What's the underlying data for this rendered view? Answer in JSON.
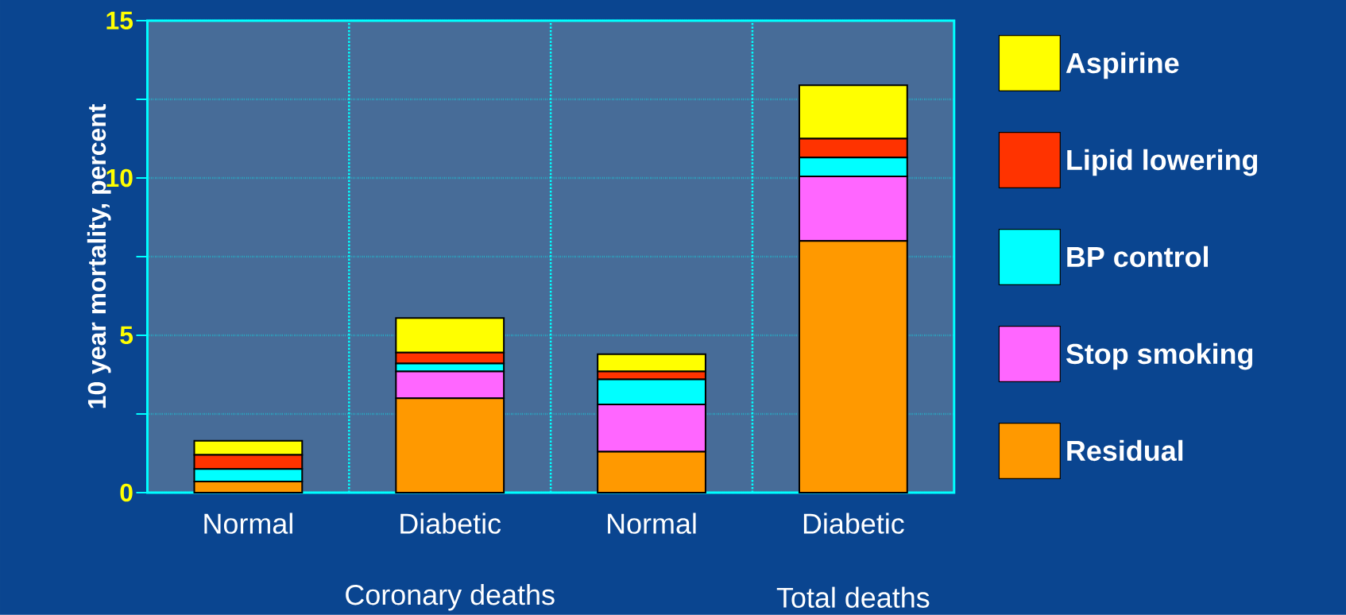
{
  "chart_data": {
    "type": "bar",
    "stacked": true,
    "ylabel": "10 year mortality, percent",
    "categories": [
      "Normal",
      "Diabetic",
      "Normal",
      "Diabetic"
    ],
    "series": [
      {
        "name": "Residual",
        "color": "#ff9900",
        "values": [
          0.35,
          3.0,
          1.3,
          8.0
        ]
      },
      {
        "name": "Stop smoking",
        "color": "#ff66ff",
        "values": [
          0,
          0.85,
          1.5,
          2.05
        ]
      },
      {
        "name": "BP control",
        "color": "#00ffff",
        "values": [
          0.4,
          0.25,
          0.8,
          0.6
        ]
      },
      {
        "name": "Lipid lowering",
        "color": "#ff3300",
        "values": [
          0.45,
          0.35,
          0.25,
          0.6
        ]
      },
      {
        "name": "Aspirine",
        "color": "#ffff00",
        "values": [
          0.45,
          1.1,
          0.55,
          1.7
        ]
      }
    ],
    "ylim": [
      0,
      15
    ],
    "yticks": [
      0,
      {
        "value": 2.5,
        "label": null
      },
      5,
      {
        "value": 7.5,
        "label": null
      },
      10,
      {
        "value": 12.5,
        "label": null
      },
      15
    ],
    "grid": true,
    "legend": "right",
    "annotations": [
      "Coronary deaths",
      "Total deaths"
    ]
  }
}
